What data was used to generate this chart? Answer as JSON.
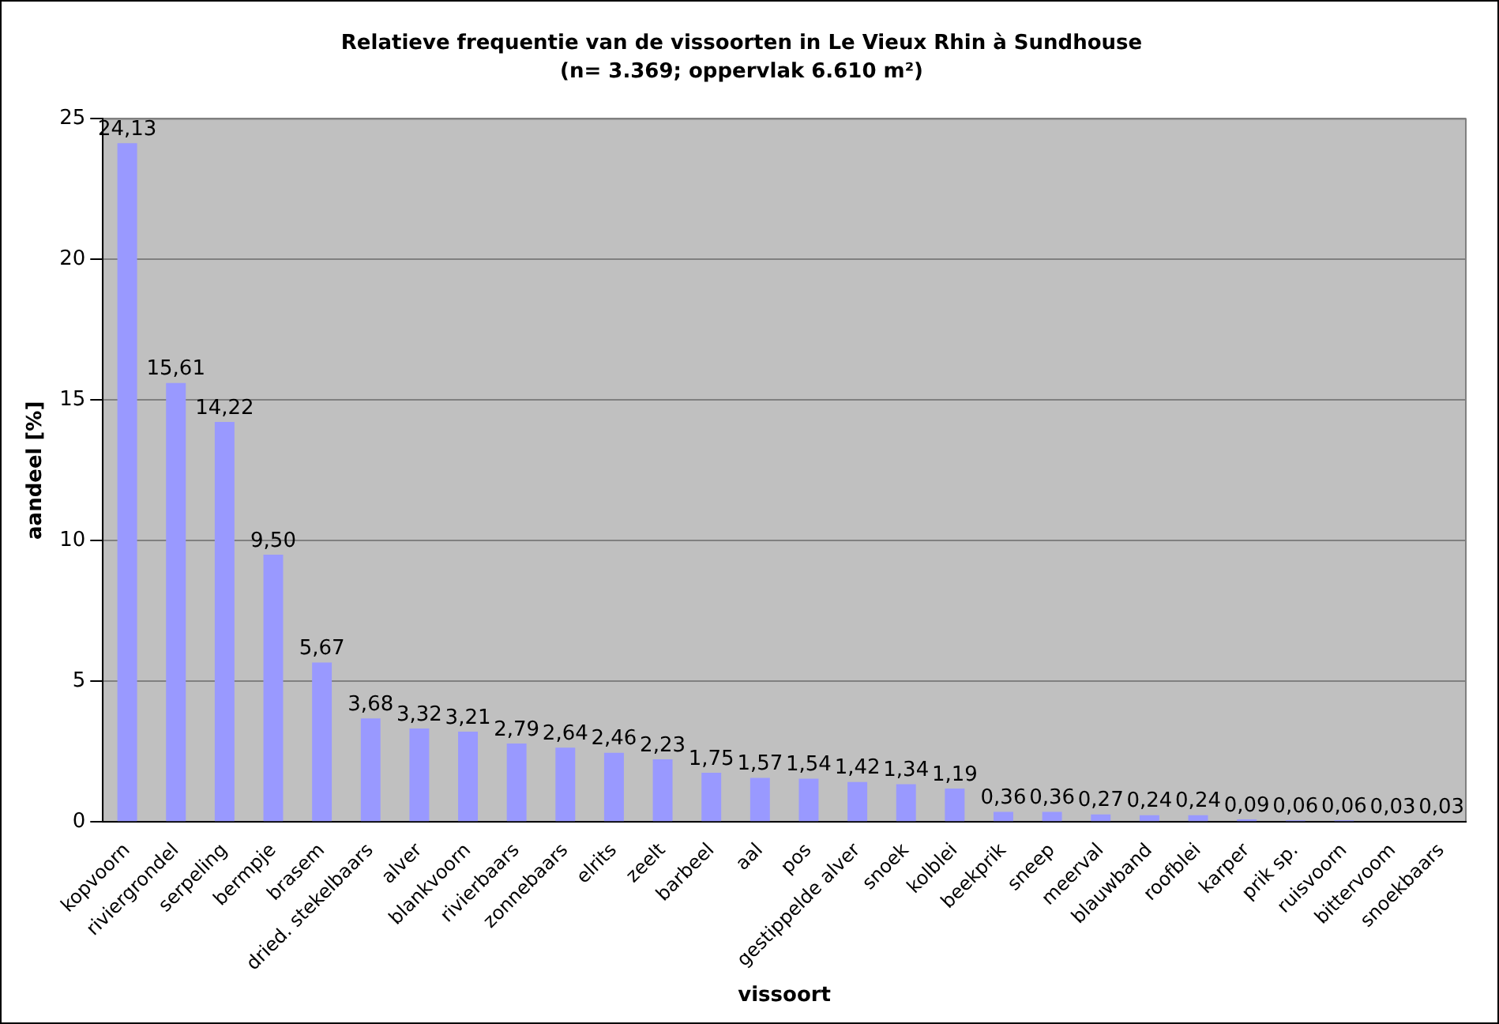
{
  "chart_data": {
    "type": "bar",
    "title": "Relatieve frequentie van de vissoorten in Le Vieux Rhin à Sundhouse",
    "subtitle": "(n= 3.369; oppervlak 6.610 m²)",
    "xlabel": "vissoort",
    "ylabel": "aandeel [%]",
    "categories": [
      "kopvoorn",
      "riviergrondel",
      "serpeling",
      "bermpje",
      "brasem",
      "dried. stekelbaars",
      "alver",
      "blankvoorn",
      "rivierbaars",
      "zonnebaars",
      "elrits",
      "zeelt",
      "barbeel",
      "aal",
      "pos",
      "gestippelde alver",
      "snoek",
      "kolblei",
      "beekprik",
      "sneep",
      "meerval",
      "blauwband",
      "roofblei",
      "karper",
      "prik sp.",
      "ruisvoorn",
      "bittervoom",
      "snoekbaars"
    ],
    "values": [
      24.13,
      15.61,
      14.22,
      9.5,
      5.67,
      3.68,
      3.32,
      3.21,
      2.79,
      2.64,
      2.46,
      2.23,
      1.75,
      1.57,
      1.54,
      1.42,
      1.34,
      1.19,
      0.36,
      0.36,
      0.27,
      0.24,
      0.24,
      0.09,
      0.06,
      0.06,
      0.03,
      0.03
    ],
    "value_labels": [
      "24,13",
      "15,61",
      "14,22",
      "9,50",
      "5,67",
      "3,68",
      "3,32",
      "3,21",
      "2,79",
      "2,64",
      "2,46",
      "2,23",
      "1,75",
      "1,57",
      "1,54",
      "1,42",
      "1,34",
      "1,19",
      "0,36",
      "0,36",
      "0,27",
      "0,24",
      "0,24",
      "0,09",
      "0,06",
      "0,06",
      "0,03",
      "0,03"
    ],
    "color": "#9999ff",
    "ylim": [
      0,
      25
    ],
    "yticks": [
      0,
      5,
      10,
      15,
      20,
      25
    ],
    "grid": "y"
  }
}
